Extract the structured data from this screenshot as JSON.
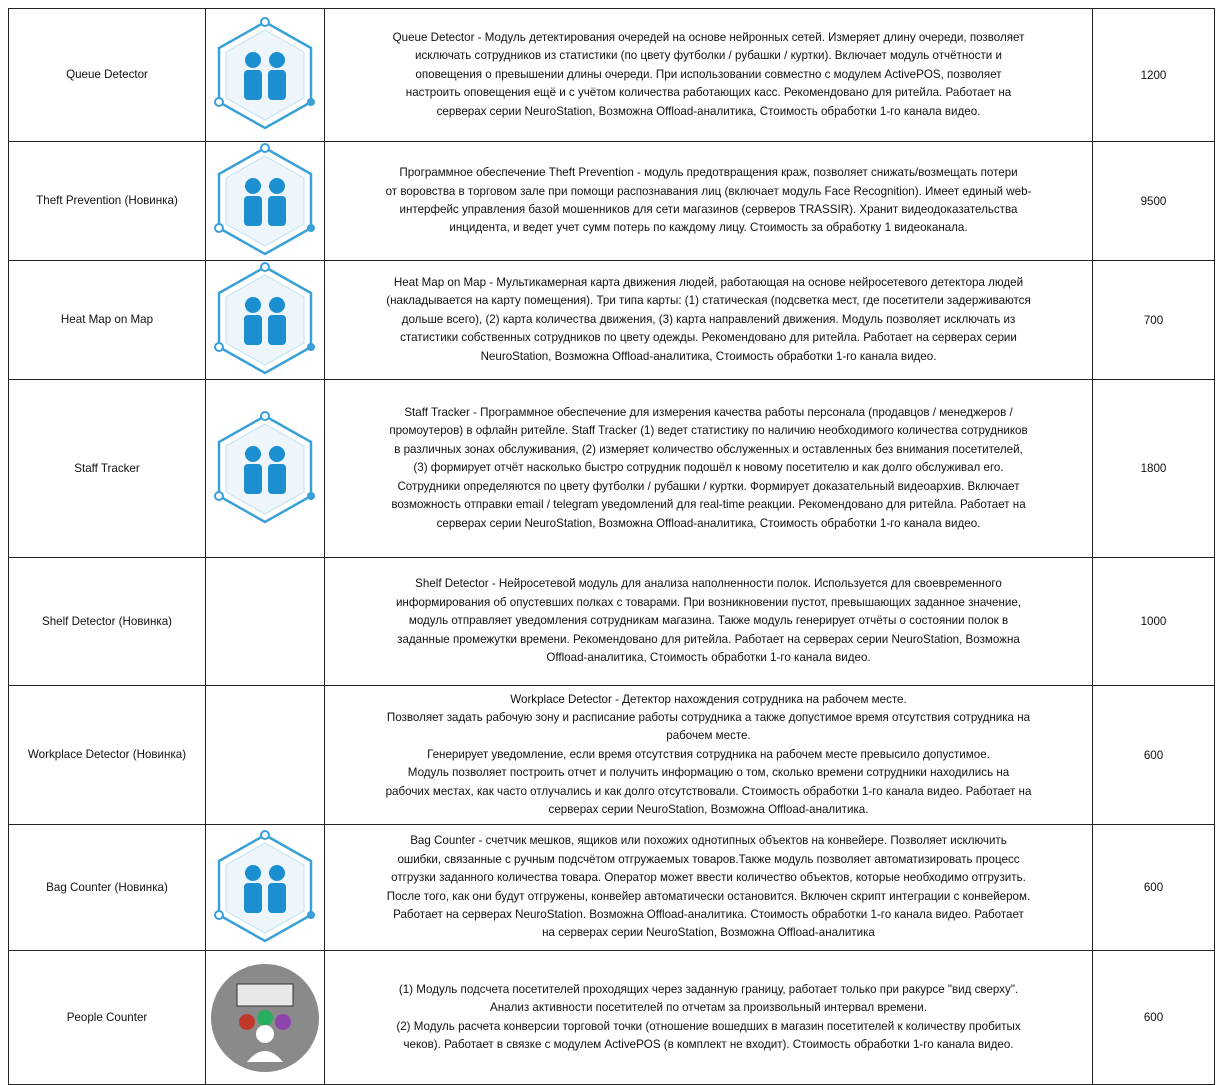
{
  "table": {
    "rows": [
      [
        "Queue Detector",
        [
          "Queue Detector - Модуль детектирования очередей на основе нейронных сетей. Измеряет длину очереди, позволяет",
          "исключать сотрудников из статистики (по цвету футболки / рубашки / куртки). Включает модуль отчётности и",
          "оповещения о превышении длины очереди. При использовании совместно с модулем  ActivePOS, позволяет",
          "настроить оповещения ещё и с учётом количества работающих касс. Рекомендовано для ритейла. Работает на",
          "серверах серии NeuroStation, Возможна Offload-аналитика, Стоимость обработки 1-го канала видео."
        ],
        "1200"
      ],
      [
        "Theft Prevention (Новинка)",
        [
          "Программное обеспечение  Theft Prevention - модуль предотвращения краж,  позволяет снижать/возмещать потери",
          "от воровства в торговом зале при помощи распознавания лиц (включает модуль  Face Recognition). Имеет единый web-",
          "интерфейс управления базой мошенников для сети магазинов (серверов TRASSIR). Хранит видеодоказательства",
          "инцидента, и ведет учет сумм потерь по каждому лицу. Стоимость за обработку 1 видеоканала."
        ],
        "9500"
      ],
      [
        "Heat Map on Map",
        [
          "Heat Map on Map - Мультикамерная карта движения людей, работающая на основе нейросетевого детектора людей",
          "(накладывается на карту помещения). Три типа карты: (1) статическая (подсветка мест, где посетители задерживаются",
          "дольше всего), (2) карта количества движения, (3) карта направлений движения. Модуль позволяет исключать из",
          "статистики собственных сотрудников по цвету одежды. Рекомендовано для ритейла. Работает на серверах серии",
          "NeuroStation, Возможна Offload-аналитика, Стоимость обработки 1-го канала видео."
        ],
        "700"
      ],
      [
        "Staff Tracker",
        [
          "Staff Tracker - Программное обеспечение для измерения качества работы персонала (продавцов / менеджеров /",
          "промоутеров) в офлайн ритейле. Staff Tracker (1) ведет статистику по наличию необходимого количества сотрудников",
          "в различных зонах обслуживания, (2) измеряет количество обслуженных и оставленных без внимания посетителей,",
          "(3) формирует отчёт насколько быстро сотрудник подошёл к новому посетителю и как долго обслуживал его.",
          "Сотрудники определяются по цвету футболки / рубашки / куртки.  Формирует доказательный видеоархив. Включает",
          "возможность отправки email / telegram уведомлений для real-time реакции. Рекомендовано для ритейла. Работает на",
          "серверах серии NeuroStation, Возможна Offload-аналитика, Стоимость обработки 1-го канала видео."
        ],
        "1800"
      ],
      [
        "Shelf Detector (Новинка)",
        [
          "Shelf Detector - Нейросетевой модуль для анализа наполненности полок. Используется для своевременного",
          "информирования об опустевших полках с товарами. При возникновении пустот, превышающих заданное значение,",
          "модуль отправляет уведомления сотрудникам магазина. Также модуль генерирует отчёты о состоянии полок в",
          "заданные промежутки времени. Рекомендовано для ритейла. Работает на серверах серии NeuroStation, Возможна",
          "Offload-аналитика, Стоимость обработки 1-го канала видео."
        ],
        "1000"
      ],
      [
        "Workplace Detector (Новинка)",
        [
          "Workplace Detector - Детектор нахождения сотрудника на рабочем месте.",
          "Позволяет задать рабочую зону и расписание работы сотрудника а также допустимое время отсутствия сотрудника на",
          "рабочем месте.",
          "Генерирует уведомление, если время отсутствия сотрудника на рабочем месте превысило допустимое.",
          "Модуль позволяет построить отчет и получить информацию о том, сколько времени сотрудники находились на",
          "рабочих местах, как часто отлучались и как долго отсутствовали. Стоимость обработки 1-го канала видео. Работает на",
          "серверах серии NeuroStation, Возможна Offload-аналитика."
        ],
        "600"
      ],
      [
        "Bag Counter (Новинка)",
        [
          "Bag Counter - счетчик мешков, ящиков или похожих однотипных объектов на конвейере. Позволяет исключить",
          "ошибки, связанные с ручным подсчётом отгружаемых товаров.Также модуль позволяет автоматизировать процесс",
          "отгрузки заданного количества товара. Оператор может ввести количество объектов, которые необходимо отгрузить.",
          "После того, как они будут отгружены, конвейер автоматически остановится. Включен скрипт интеграции с конвейером.",
          "Работает на серверах  NeuroStation. Возможна Offload-аналитика. Стоимость обработки 1-го канала видео. Работает",
          "на серверах серии NeuroStation, Возможна Offload-аналитика"
        ],
        "600"
      ],
      [
        "People Counter",
        [
          "(1) Модуль подсчета посетителей проходящих через заданную границу, работает только при ракурсе \"вид сверху\".",
          "Анализ активности посетителей по отчетам за произвольный интервал времени.",
          "(2) Модуль расчета конверсии торговой точки (отношение вошедших в магазин посетителей к количеству пробитых",
          "чеков). Работает в связке с модулем ActivePOS (в комплект не входит). Стоимость обработки 1-го канала видео."
        ],
        "600"
      ]
    ]
  }
}
